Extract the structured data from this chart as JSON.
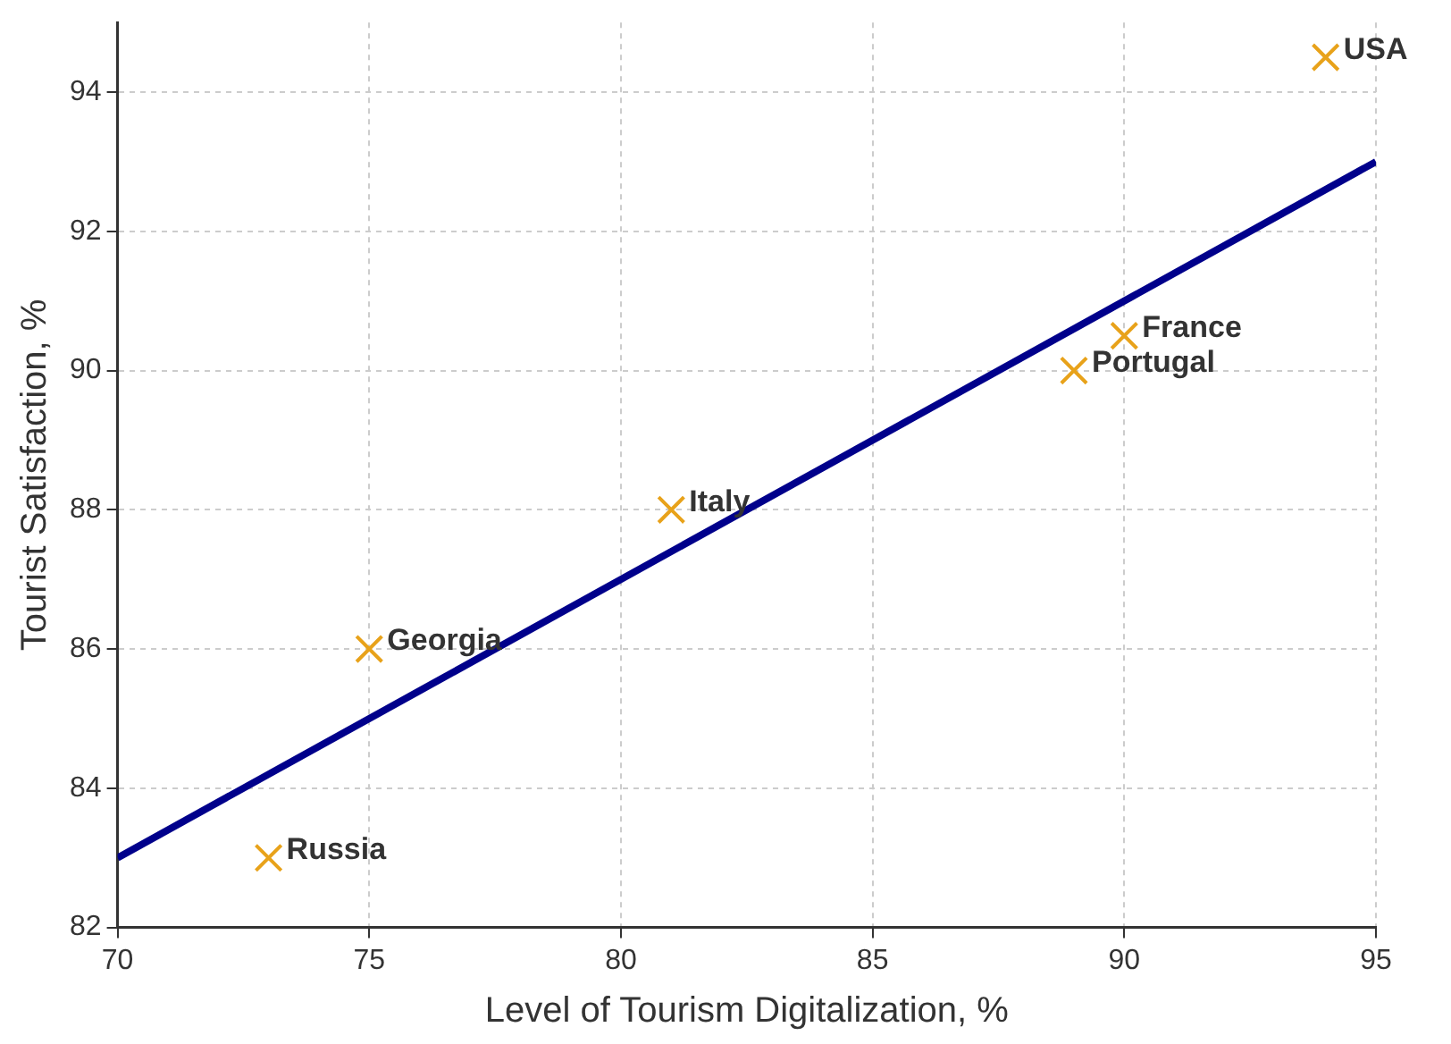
{
  "chart_data": {
    "type": "scatter",
    "xlabel": "Level of Tourism Digitalization, %",
    "ylabel": "Tourist Satisfaction, %",
    "series": [
      {
        "color": "#e8a21a",
        "marker": "cross",
        "x": [
          73,
          75,
          81,
          89,
          90,
          94
        ],
        "values": [
          83,
          86,
          88,
          90,
          90.5,
          94.5
        ]
      },
      {
        "type": "line",
        "color": "#00008b",
        "line_style": "solid",
        "marker": "none",
        "x": [
          70,
          95
        ],
        "values": [
          83,
          93
        ]
      }
    ],
    "annotations": [
      {
        "text": "Russia",
        "x": 73,
        "y": 83
      },
      {
        "text": "Georgia",
        "x": 75,
        "y": 86
      },
      {
        "text": "Italy",
        "x": 81,
        "y": 88
      },
      {
        "text": "Portugal",
        "x": 89,
        "y": 90
      },
      {
        "text": "France",
        "x": 90,
        "y": 90.5
      },
      {
        "text": "USA",
        "x": 94,
        "y": 94.5
      }
    ],
    "xlim": [
      70,
      95
    ],
    "xticks": [
      70,
      75,
      80,
      85,
      90,
      95
    ],
    "ylim": [
      82,
      95
    ],
    "yticks": [
      82,
      84,
      86,
      88,
      90,
      92,
      94
    ],
    "grid": true,
    "legend": false
  }
}
